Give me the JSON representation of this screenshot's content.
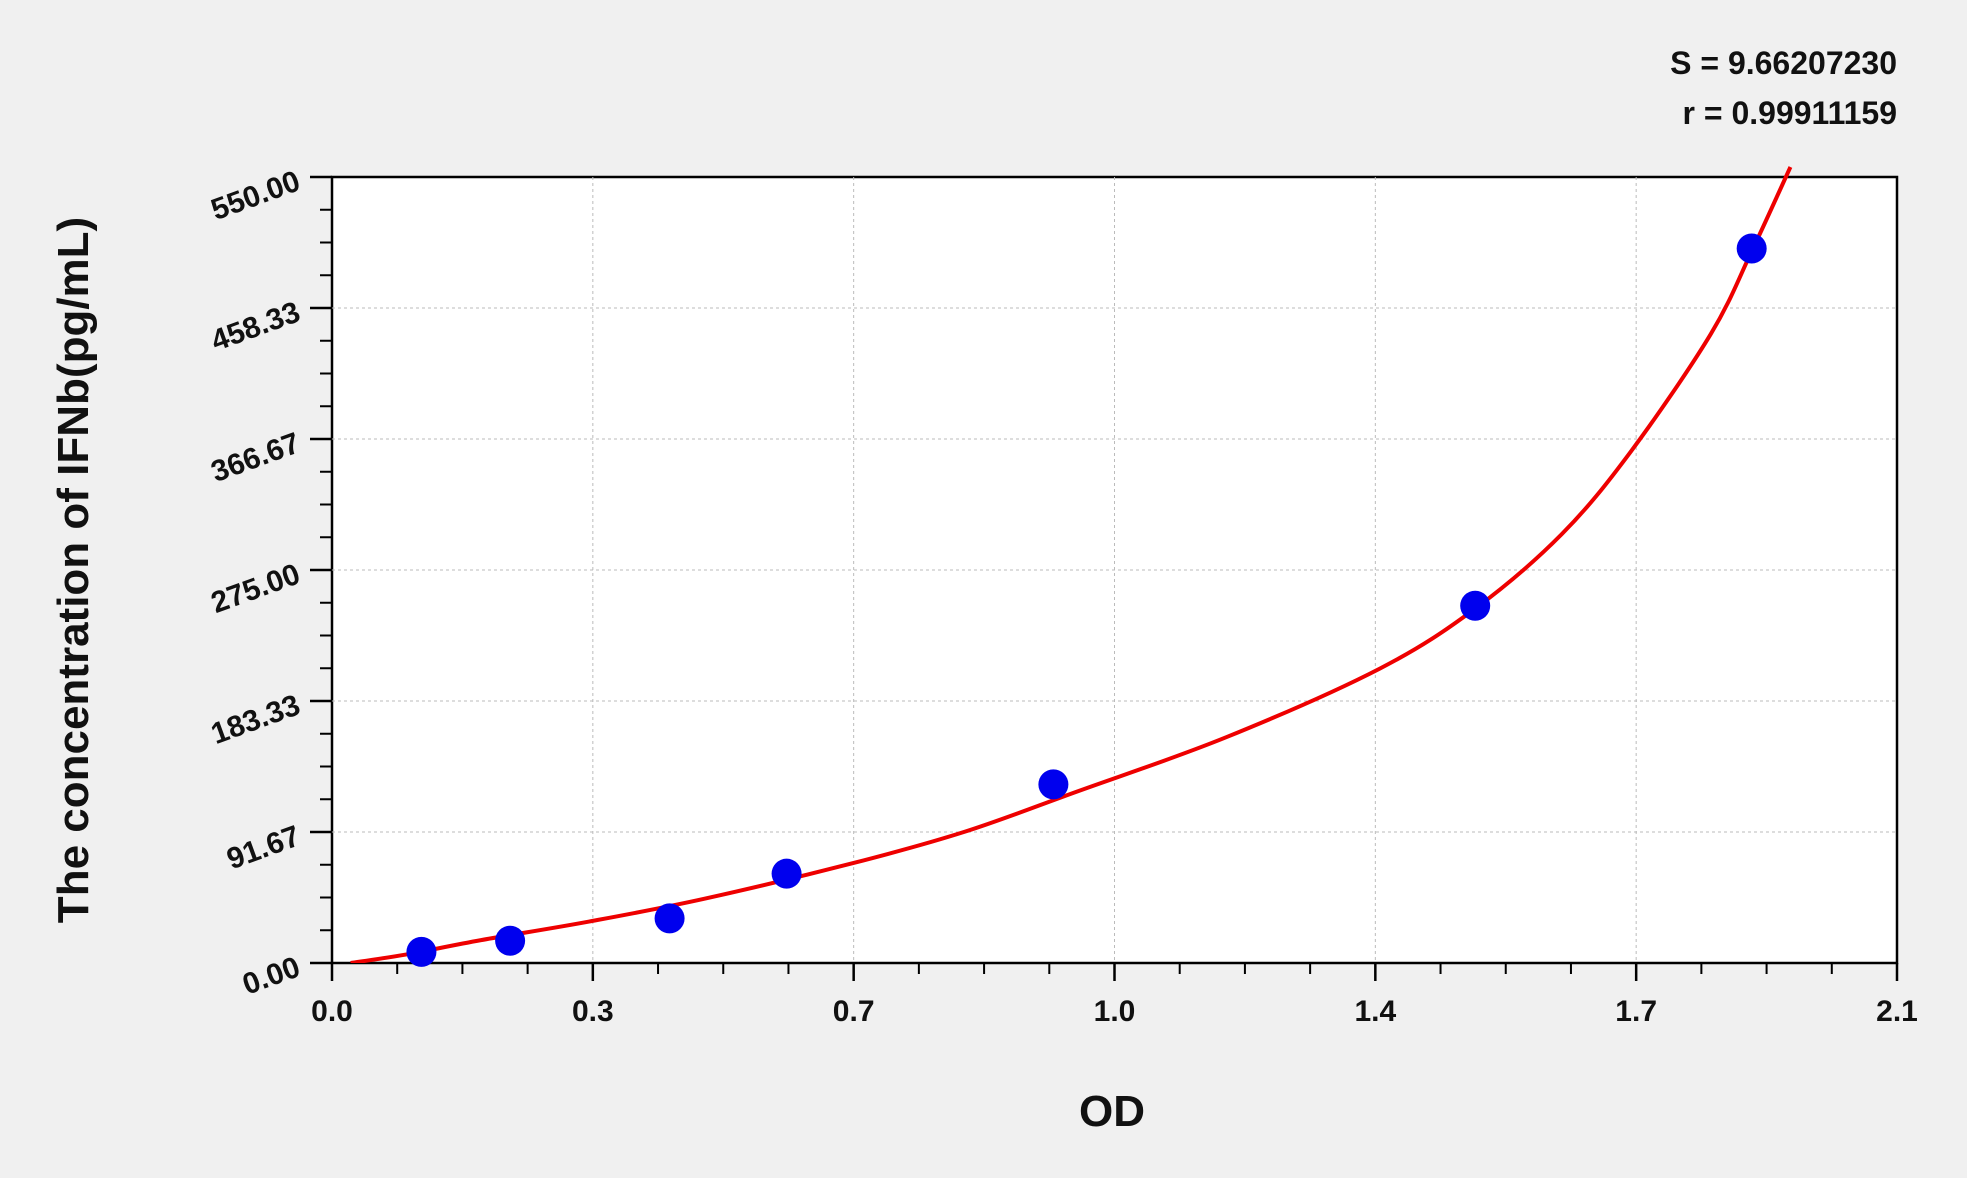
{
  "chart_data": {
    "type": "scatter",
    "title": "",
    "xlabel": "OD",
    "ylabel": "The concentration of IFNb(pg/mL)",
    "xlim": [
      0,
      2.1
    ],
    "ylim": [
      0,
      550
    ],
    "x_ticks": [
      0,
      0.35,
      0.7,
      1.05,
      1.4,
      1.75,
      2.1
    ],
    "x_tick_labels": [
      "0.0",
      "0.3",
      "0.7",
      "1.0",
      "1.4",
      "1.7",
      "2.1"
    ],
    "y_ticks": [
      0,
      91.67,
      183.33,
      275,
      366.67,
      458.33,
      550
    ],
    "y_tick_labels": [
      "0.00",
      "91.67",
      "183.33",
      "275.00",
      "366.67",
      "458.33",
      "550.00"
    ],
    "grid": true,
    "annotations": [
      "S = 9.66207230",
      "r = 0.99911159"
    ],
    "points": {
      "x": [
        0.12,
        0.239,
        0.453,
        0.61,
        0.968,
        1.534,
        1.905
      ],
      "y": [
        7.8,
        15.6,
        31.25,
        62.5,
        125,
        250,
        500
      ],
      "color": "#0000ee"
    },
    "fit_curve": {
      "x": [
        0.025,
        0.1,
        0.2,
        0.345,
        0.5,
        0.7,
        0.85,
        1.0,
        1.2,
        1.406,
        1.534,
        1.65,
        1.743,
        1.85,
        1.905,
        1.957
      ],
      "y": [
        0,
        6,
        16,
        29,
        45,
        70,
        92,
        120,
        158,
        206,
        248,
        300,
        358,
        440,
        498,
        557
      ],
      "color": "#ee0000"
    }
  }
}
